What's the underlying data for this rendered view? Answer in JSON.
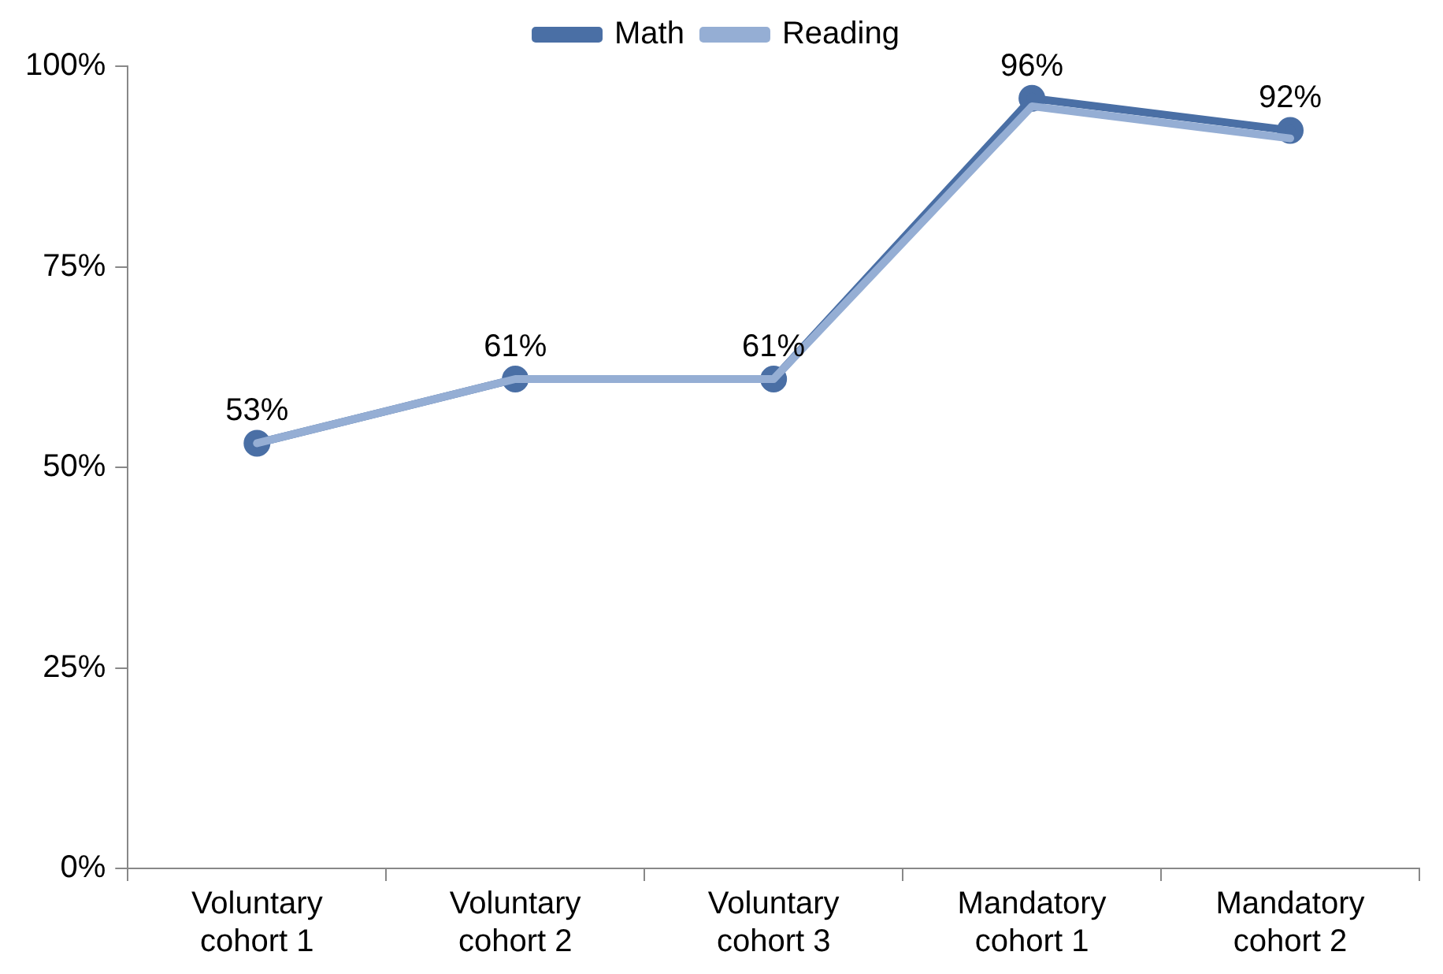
{
  "chart_data": {
    "type": "line",
    "categories": [
      "Voluntary cohort 1",
      "Voluntary cohort 2",
      "Voluntary cohort 3",
      "Mandatory cohort 1",
      "Mandatory cohort 2"
    ],
    "series": [
      {
        "name": "Math",
        "color": "#4a6fa5",
        "marker": "circle",
        "values": [
          53,
          61,
          61,
          96,
          92
        ],
        "value_labels": [
          "53%",
          "61%",
          "61%",
          "96%",
          "92%"
        ]
      },
      {
        "name": "Reading",
        "color": "#95aed4",
        "marker": "none",
        "values": [
          53,
          61,
          61,
          95,
          91
        ]
      }
    ],
    "ylim": [
      0,
      100
    ],
    "yticks": [
      {
        "value": 0,
        "label": "0%"
      },
      {
        "value": 25,
        "label": "25%"
      },
      {
        "value": 50,
        "label": "50%"
      },
      {
        "value": 75,
        "label": "75%"
      },
      {
        "value": 100,
        "label": "100%"
      }
    ],
    "grid": false,
    "legend": "top"
  }
}
